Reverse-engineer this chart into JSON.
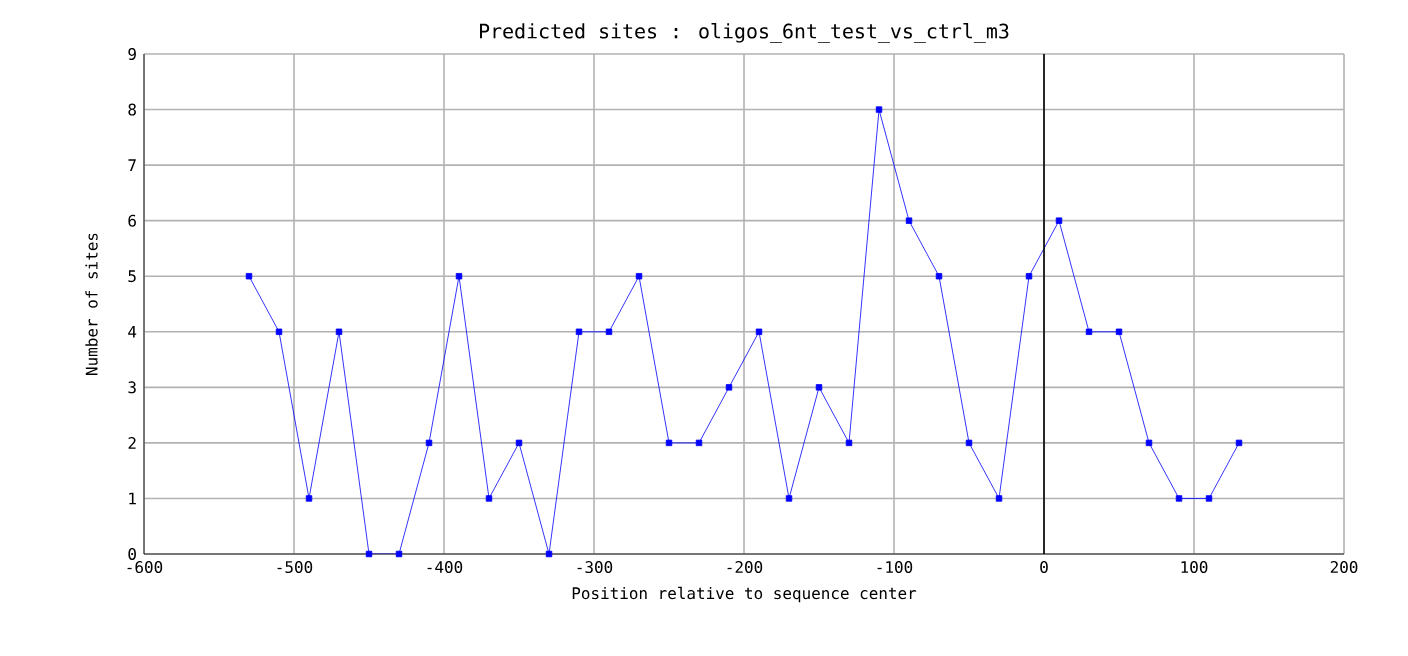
{
  "chart_data": {
    "type": "line",
    "title": "Predicted sites : oligos_6nt_test_vs_ctrl_m3",
    "xlabel": "Position relative to sequence center",
    "ylabel": "Number of sites",
    "x": [
      -530,
      -510,
      -490,
      -470,
      -450,
      -430,
      -410,
      -390,
      -370,
      -350,
      -330,
      -310,
      -290,
      -270,
      -250,
      -230,
      -210,
      -190,
      -170,
      -150,
      -130,
      -110,
      -90,
      -70,
      -50,
      -30,
      -10,
      10,
      30,
      50,
      70,
      90,
      110,
      130
    ],
    "series": [
      {
        "color": "#0000ff",
        "values": [
          5,
          4,
          1,
          4,
          0,
          0,
          2,
          5,
          1,
          2,
          0,
          4,
          4,
          5,
          2,
          2,
          3,
          4,
          1,
          3,
          2,
          8,
          6,
          5,
          2,
          1,
          5,
          6,
          4,
          4,
          2,
          1,
          1,
          2
        ]
      }
    ],
    "xlim": [
      -600,
      200
    ],
    "xticks": [
      -600,
      -500,
      -400,
      -300,
      -200,
      -100,
      0,
      100,
      200
    ],
    "ylim": [
      0,
      9
    ],
    "yticks": [
      0,
      1,
      2,
      3,
      4,
      5,
      6,
      7,
      8,
      9
    ],
    "ref_lines": [
      {
        "axis": "x",
        "value": 0,
        "color": "#000000"
      }
    ],
    "grid": true,
    "marker": "square",
    "line_style": "solid"
  }
}
